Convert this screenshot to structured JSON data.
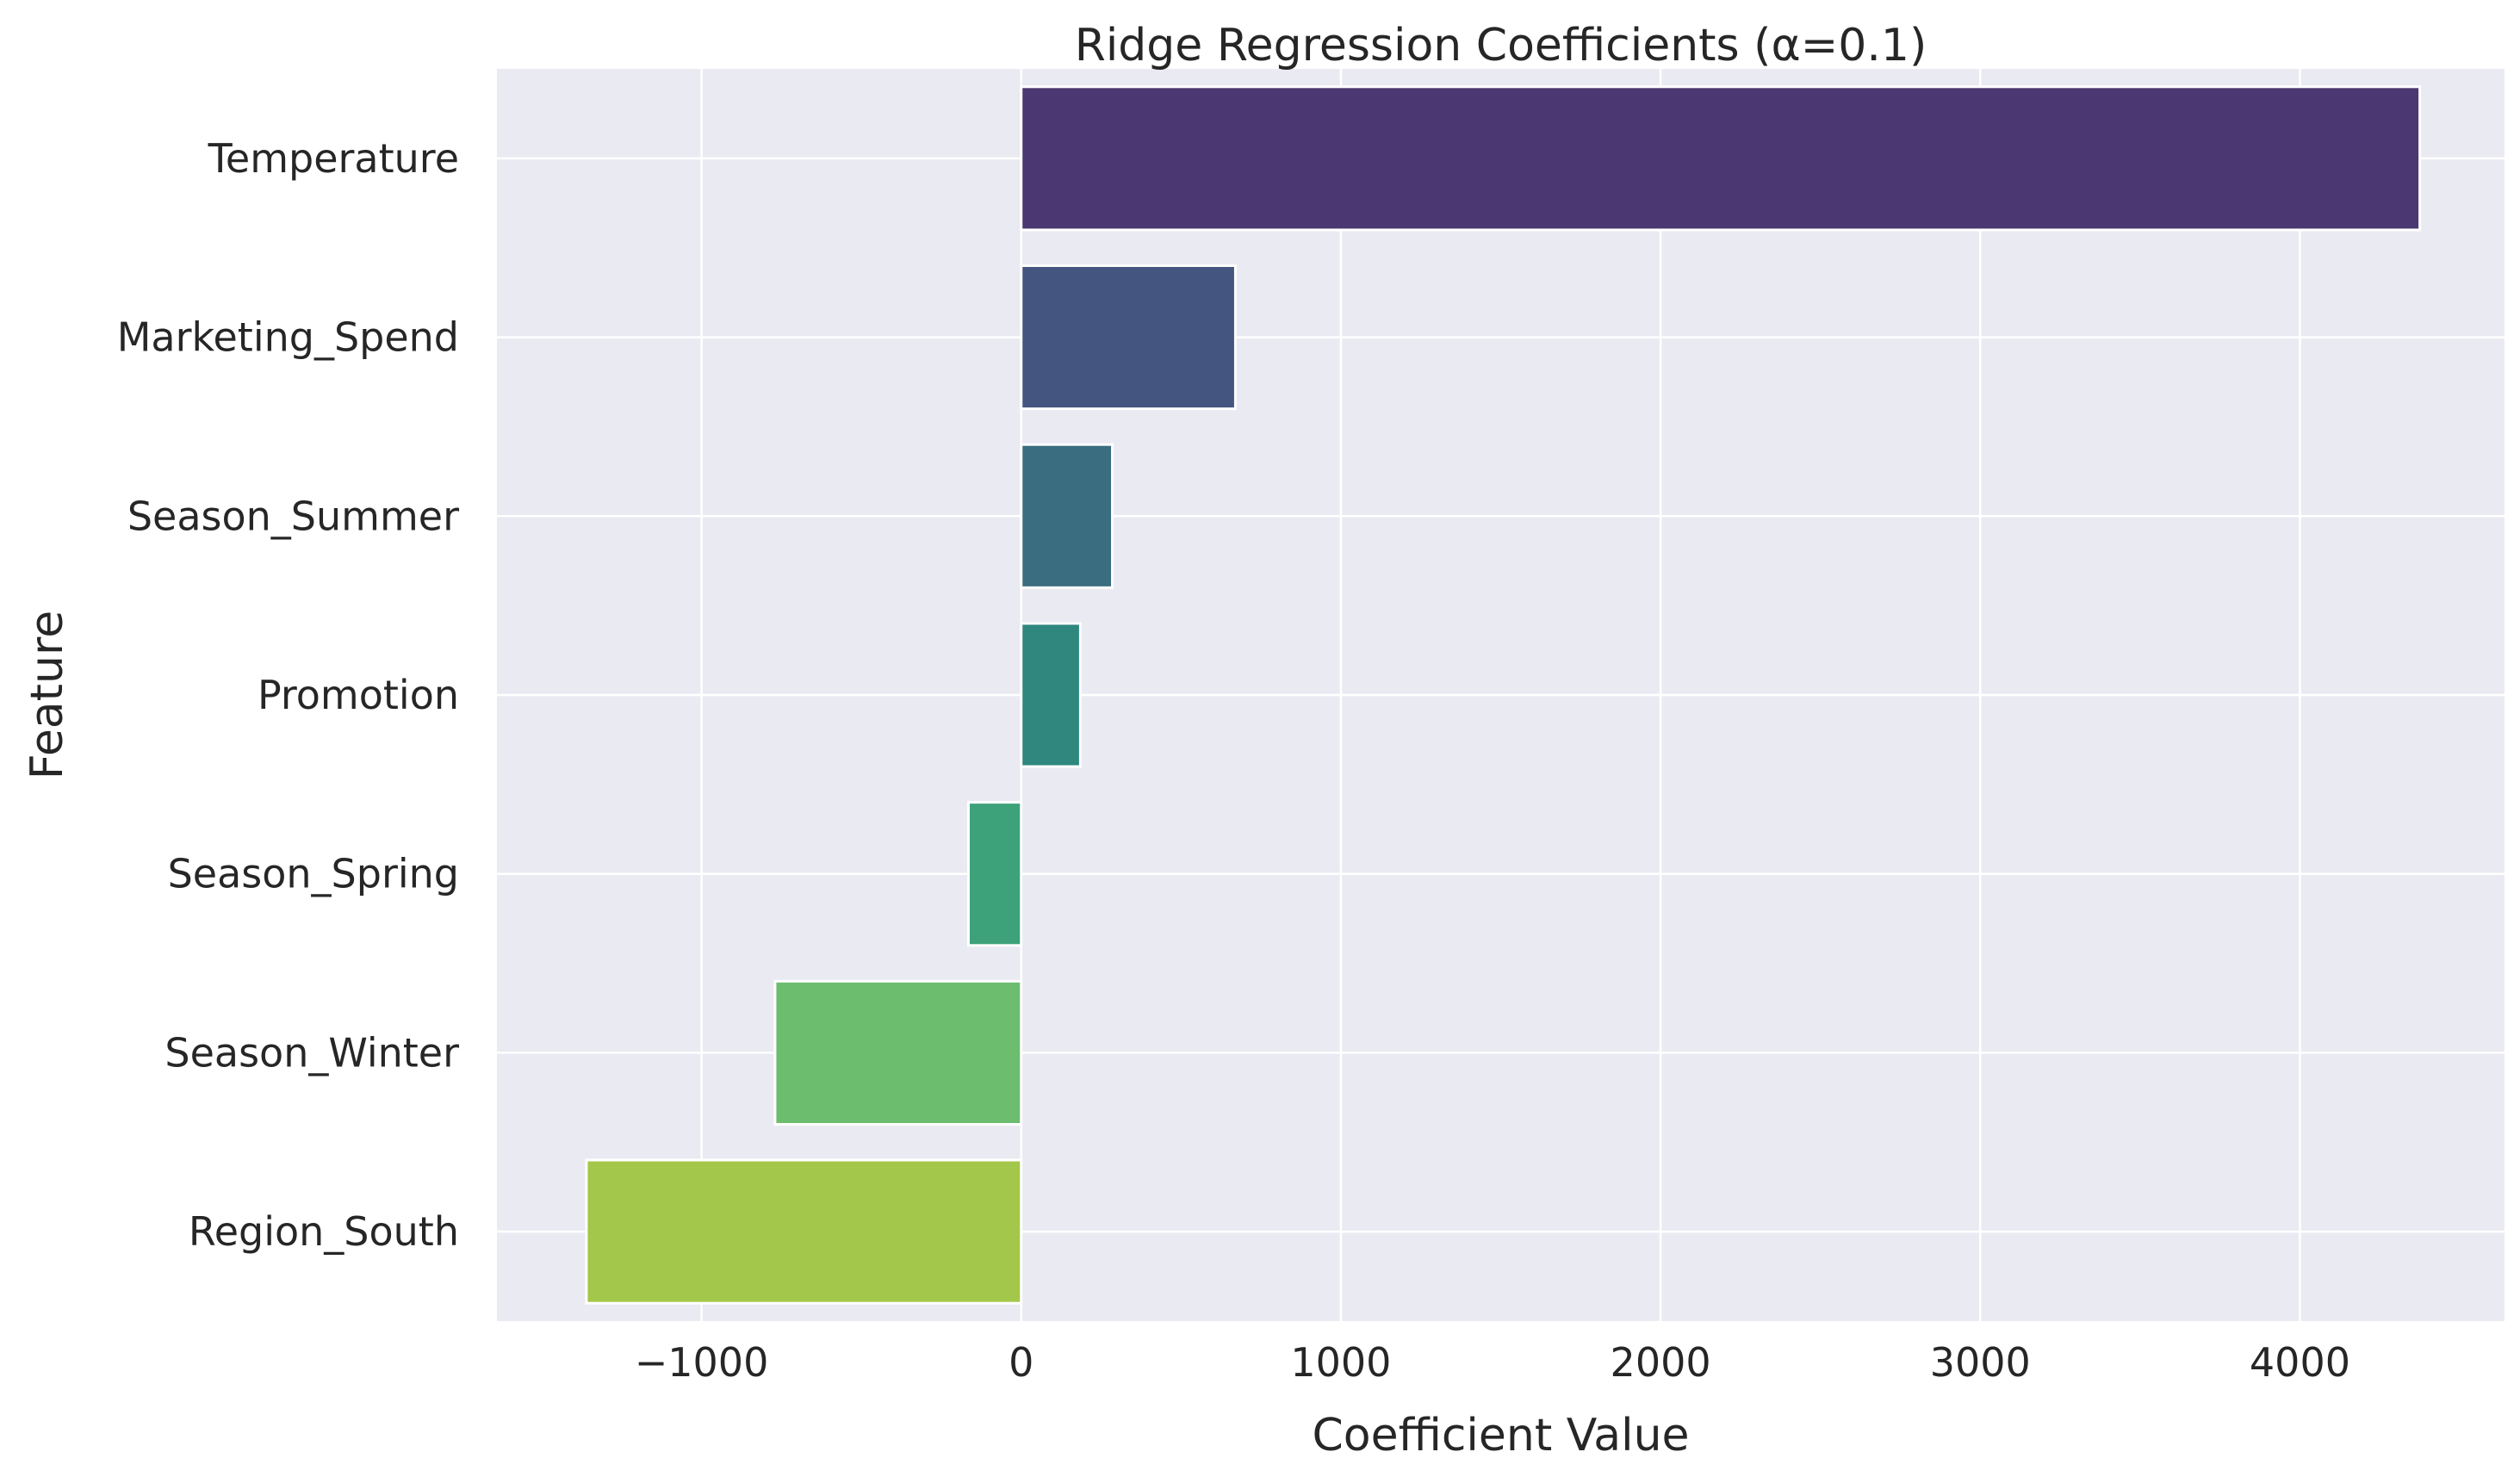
{
  "chart_data": {
    "type": "bar",
    "orientation": "horizontal",
    "title": "Ridge Regression Coefficients (α=0.1)",
    "xlabel": "Coefficient Value",
    "ylabel": "Feature",
    "categories": [
      "Temperature",
      "Marketing_Spend",
      "Season_Summer",
      "Promotion",
      "Season_Spring",
      "Season_Winter",
      "Region_South"
    ],
    "values": [
      4375,
      670,
      285,
      185,
      -165,
      -770,
      -1360
    ],
    "xlim": [
      -1640,
      4640
    ],
    "xticks": [
      -1000,
      0,
      1000,
      2000,
      3000,
      4000
    ],
    "xtick_labels": [
      "−1000",
      "0",
      "1000",
      "2000",
      "3000",
      "4000"
    ],
    "grid": true,
    "legend": "none",
    "colors": [
      "#4b3771",
      "#44567f",
      "#3a6d80",
      "#2f877e",
      "#3da27a",
      "#6cbd6e",
      "#a3c74a"
    ],
    "background_color": "#eaeaf2",
    "grid_color": "#ffffff"
  }
}
